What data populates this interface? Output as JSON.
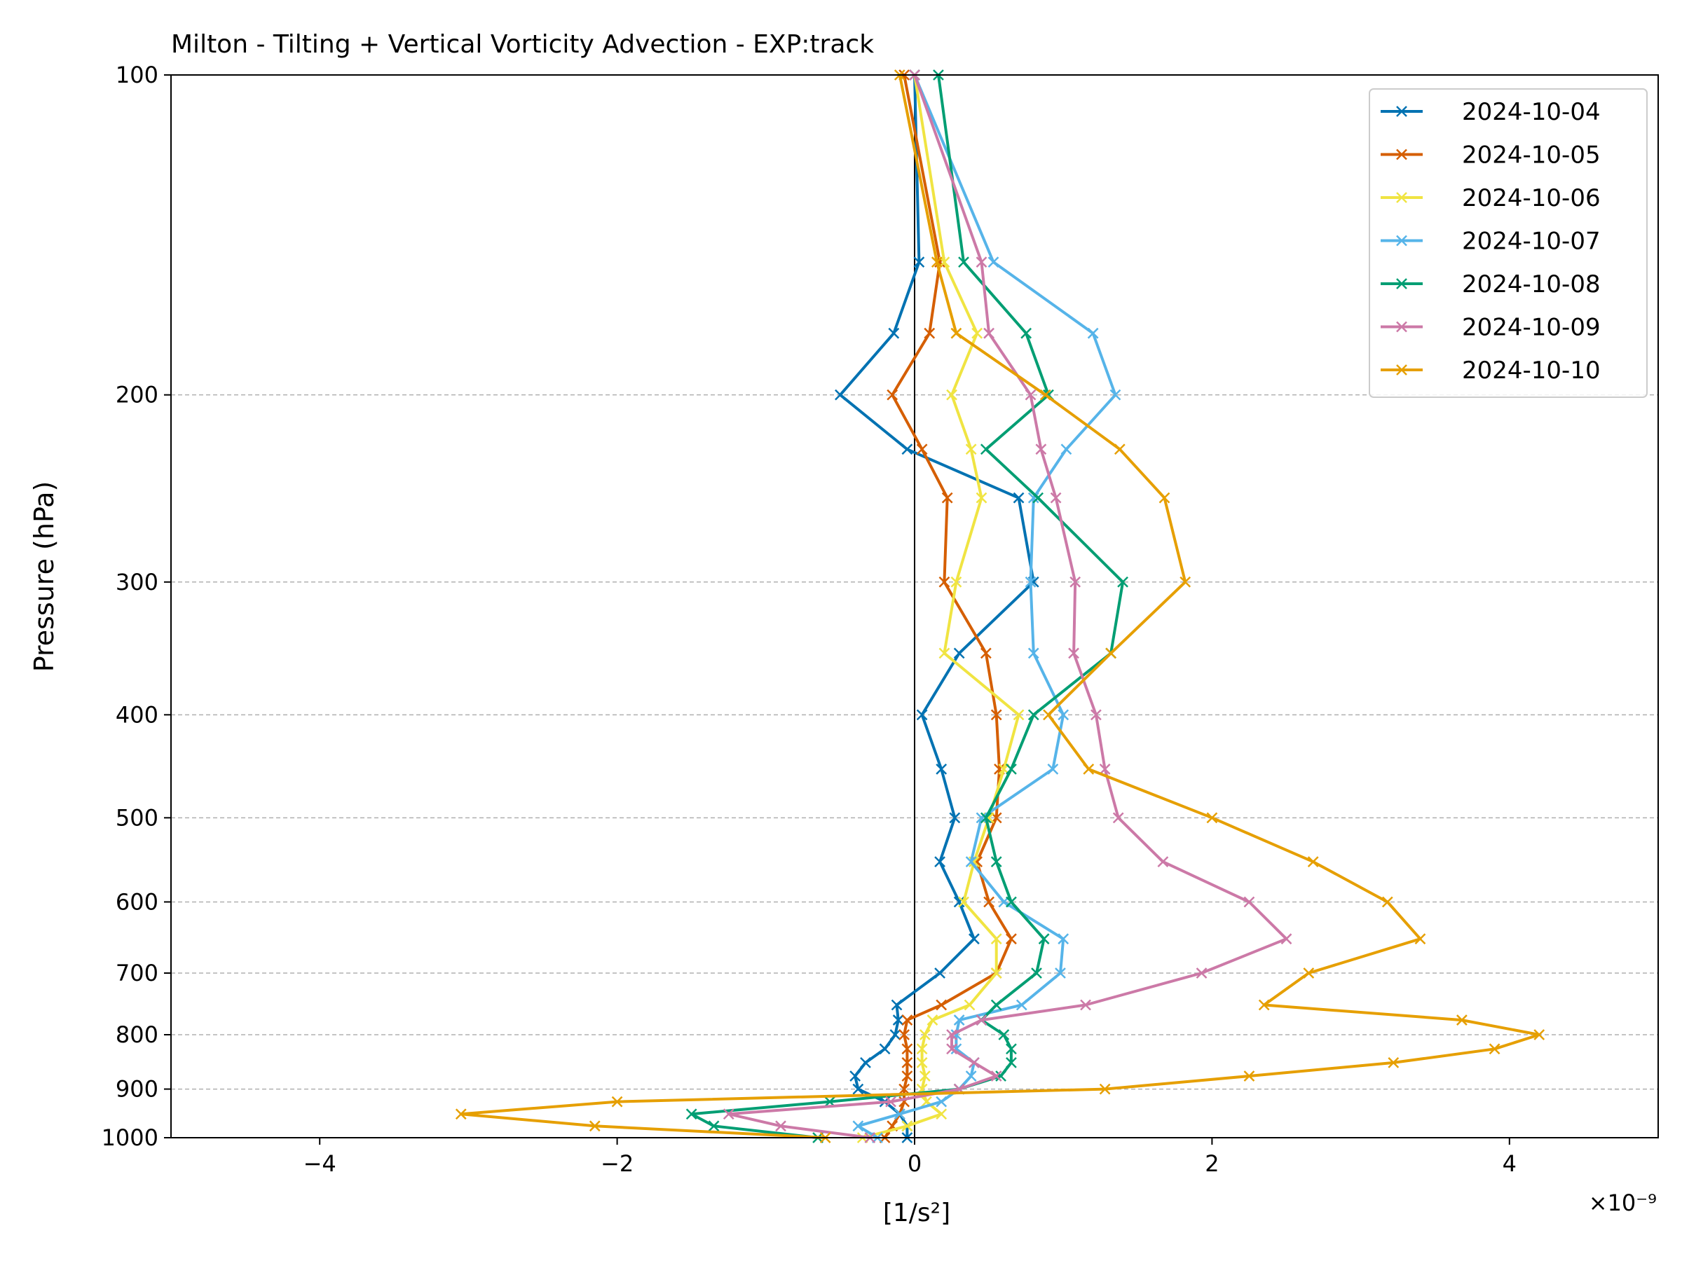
{
  "chart_data": {
    "type": "line",
    "title": "Milton - Tilting + Vertical Vorticity Advection - EXP:track",
    "xlabel": "[1/s²]",
    "ylabel": "Pressure (hPa)",
    "x_offset_label": "×10⁻⁹",
    "x_scale": 1e-09,
    "xlim": [
      -5,
      5
    ],
    "ylim": [
      1000,
      100
    ],
    "y_scale": "log",
    "y_inverted": true,
    "x_ticks": [
      -4,
      -2,
      0,
      2,
      4
    ],
    "x_tick_labels": [
      "−4",
      "−2",
      "0",
      "2",
      "4"
    ],
    "y_ticks": [
      100,
      200,
      300,
      400,
      500,
      600,
      700,
      800,
      900,
      1000
    ],
    "y_tick_labels": [
      "100",
      "200",
      "300",
      "400",
      "500",
      "600",
      "700",
      "800",
      "900",
      "1000"
    ],
    "grid": "horizontal dashed at y ticks",
    "zero_line": true,
    "legend_position": "top-right",
    "levels": [
      100,
      150,
      175,
      200,
      225,
      250,
      300,
      350,
      400,
      450,
      500,
      550,
      600,
      650,
      700,
      750,
      775,
      800,
      825,
      850,
      875,
      900,
      925,
      950,
      975,
      1000
    ],
    "series": [
      {
        "name": "2024-10-04",
        "color": "#0072B2",
        "values": [
          0.0,
          0.03,
          -0.14,
          -0.5,
          -0.05,
          0.7,
          0.8,
          0.3,
          0.05,
          0.18,
          0.27,
          0.17,
          0.3,
          0.4,
          0.17,
          -0.12,
          -0.11,
          -0.13,
          -0.2,
          -0.33,
          -0.4,
          -0.38,
          -0.2,
          -0.1,
          -0.05,
          -0.05
        ]
      },
      {
        "name": "2024-10-05",
        "color": "#D55E00",
        "values": [
          -0.07,
          0.17,
          0.1,
          -0.15,
          0.05,
          0.22,
          0.2,
          0.48,
          0.55,
          0.57,
          0.55,
          0.42,
          0.5,
          0.65,
          0.55,
          0.18,
          -0.05,
          -0.07,
          -0.05,
          -0.05,
          -0.05,
          -0.07,
          -0.07,
          -0.1,
          -0.15,
          -0.2
        ]
      },
      {
        "name": "2024-10-06",
        "color": "#F0E442",
        "values": [
          0.0,
          0.2,
          0.42,
          0.25,
          0.38,
          0.45,
          0.28,
          0.2,
          0.7,
          0.6,
          0.5,
          0.4,
          0.33,
          0.55,
          0.55,
          0.37,
          0.12,
          0.07,
          0.05,
          0.05,
          0.07,
          0.05,
          0.08,
          0.18,
          -0.05,
          -0.35
        ]
      },
      {
        "name": "2024-10-07",
        "color": "#56B4E9",
        "values": [
          0.0,
          0.53,
          1.2,
          1.35,
          1.02,
          0.8,
          0.78,
          0.8,
          1.0,
          0.93,
          0.45,
          0.38,
          0.6,
          1.0,
          0.98,
          0.72,
          0.3,
          0.28,
          0.28,
          0.4,
          0.38,
          0.3,
          0.18,
          -0.1,
          -0.38,
          -0.25
        ]
      },
      {
        "name": "2024-10-08",
        "color": "#009E73",
        "values": [
          0.16,
          0.33,
          0.75,
          0.9,
          0.48,
          0.83,
          1.4,
          1.32,
          0.8,
          0.65,
          0.48,
          0.55,
          0.65,
          0.87,
          0.82,
          0.55,
          0.45,
          0.6,
          0.65,
          0.65,
          0.58,
          0.3,
          -0.57,
          -1.5,
          -1.35,
          -0.65
        ]
      },
      {
        "name": "2024-10-09",
        "color": "#CC79A7",
        "values": [
          0.0,
          0.45,
          0.5,
          0.78,
          0.85,
          0.95,
          1.08,
          1.07,
          1.22,
          1.28,
          1.37,
          1.67,
          2.25,
          2.5,
          1.93,
          1.15,
          0.45,
          0.25,
          0.25,
          0.4,
          0.55,
          0.3,
          -0.16,
          -1.25,
          -0.9,
          -0.3
        ]
      },
      {
        "name": "2024-10-10",
        "color": "#E69F00",
        "values": [
          -0.1,
          0.15,
          0.28,
          0.88,
          1.38,
          1.68,
          1.82,
          1.32,
          0.9,
          1.17,
          2.0,
          2.68,
          3.18,
          3.4,
          2.65,
          2.35,
          3.68,
          4.2,
          3.9,
          3.22,
          2.25,
          1.28,
          -2.0,
          -3.05,
          -2.15,
          -0.6
        ]
      }
    ]
  }
}
